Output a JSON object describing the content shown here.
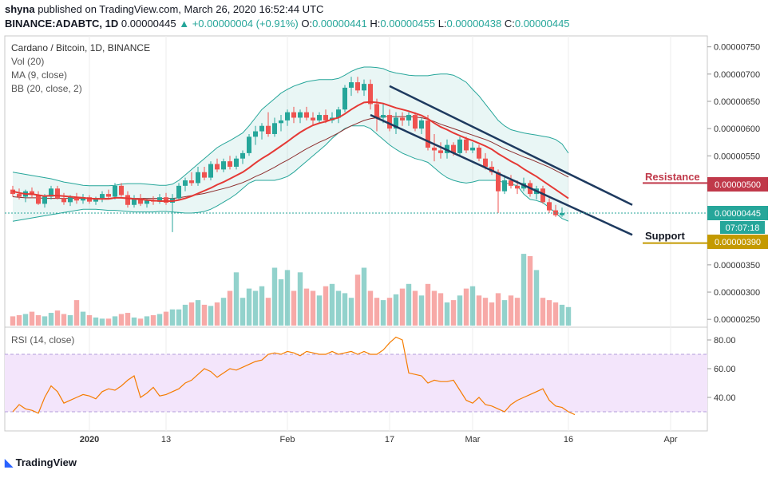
{
  "header": {
    "user": "shyna",
    "published_text": "published on TradingView.com, March 26, 2020 16:52:44 UTC",
    "symbol": "BINANCE:ADABTC, 1D",
    "last": "0.00000445",
    "change": "+0.00000004 (+0.91%)",
    "o_label": "O:",
    "o": "0.00000441",
    "h_label": "H:",
    "h": "0.00000455",
    "l_label": "L:",
    "l": "0.00000438",
    "c_label": "C:",
    "c": "0.00000445"
  },
  "legend": {
    "title": "Cardano / Bitcoin, 1D, BINANCE",
    "vol": "Vol (20)",
    "ma": "MA (9, close)",
    "bb": "BB (20, close, 2)",
    "rsi": "RSI (14, close)"
  },
  "annotations": {
    "resistance": "Resistance",
    "support": "Support",
    "resistance_price": "0.00000500",
    "support_price": "0.00000390",
    "last_price": "0.00000445",
    "countdown": "07:07:18"
  },
  "footer": {
    "brand": "TradingView"
  },
  "colors": {
    "up": "#26a69a",
    "down": "#ef5350",
    "ma": "#e53935",
    "bb_mid": "#8d2e2e",
    "bb_band": "#26a69a",
    "channel": "#1e3a5f",
    "rsi": "#f57c00",
    "resistance": "#c0394a",
    "support": "#c49a00"
  },
  "chart_data": {
    "type": "candlestick",
    "price_axis": {
      "ticks": [
        "0.00000750",
        "0.00000700",
        "0.00000650",
        "0.00000600",
        "0.00000550",
        "0.00000500",
        "0.00000445",
        "0.00000390",
        "0.00000350",
        "0.00000300",
        "0.00000250"
      ],
      "ylim": [
        2.5e-06,
        7.7e-06
      ]
    },
    "rsi_axis": {
      "ticks": [
        "80.00",
        "60.00",
        "40.00"
      ],
      "ylim": [
        17,
        87
      ],
      "upper": 70,
      "lower": 30
    },
    "x_ticks": [
      "2020",
      "13",
      "Feb",
      "17",
      "Mar",
      "16",
      "Apr"
    ],
    "x_tick_days": [
      0,
      12,
      31,
      47,
      60,
      75,
      91
    ],
    "first_day_offset": -12,
    "candles": [
      {
        "o": 4.88,
        "h": 4.95,
        "l": 4.75,
        "c": 4.8
      },
      {
        "o": 4.8,
        "h": 4.9,
        "l": 4.7,
        "c": 4.75
      },
      {
        "o": 4.75,
        "h": 4.88,
        "l": 4.65,
        "c": 4.85
      },
      {
        "o": 4.85,
        "h": 4.92,
        "l": 4.72,
        "c": 4.78
      },
      {
        "o": 4.78,
        "h": 4.85,
        "l": 4.6,
        "c": 4.62
      },
      {
        "o": 4.62,
        "h": 4.8,
        "l": 4.55,
        "c": 4.75
      },
      {
        "o": 4.75,
        "h": 4.95,
        "l": 4.7,
        "c": 4.9
      },
      {
        "o": 4.9,
        "h": 4.95,
        "l": 4.7,
        "c": 4.72
      },
      {
        "o": 4.72,
        "h": 4.82,
        "l": 4.6,
        "c": 4.65
      },
      {
        "o": 4.65,
        "h": 4.78,
        "l": 4.58,
        "c": 4.75
      },
      {
        "o": 4.75,
        "h": 4.82,
        "l": 4.62,
        "c": 4.68
      },
      {
        "o": 4.68,
        "h": 4.8,
        "l": 4.62,
        "c": 4.74
      },
      {
        "o": 4.74,
        "h": 4.78,
        "l": 4.62,
        "c": 4.66
      },
      {
        "o": 4.66,
        "h": 4.75,
        "l": 4.6,
        "c": 4.72
      },
      {
        "o": 4.72,
        "h": 4.85,
        "l": 4.65,
        "c": 4.8
      },
      {
        "o": 4.8,
        "h": 4.88,
        "l": 4.7,
        "c": 4.75
      },
      {
        "o": 4.75,
        "h": 5.0,
        "l": 4.7,
        "c": 4.95
      },
      {
        "o": 4.95,
        "h": 5.0,
        "l": 4.75,
        "c": 4.78
      },
      {
        "o": 4.78,
        "h": 4.85,
        "l": 4.55,
        "c": 4.6
      },
      {
        "o": 4.6,
        "h": 4.78,
        "l": 4.55,
        "c": 4.72
      },
      {
        "o": 4.72,
        "h": 4.8,
        "l": 4.58,
        "c": 4.62
      },
      {
        "o": 4.62,
        "h": 4.72,
        "l": 4.55,
        "c": 4.68
      },
      {
        "o": 4.68,
        "h": 4.76,
        "l": 4.6,
        "c": 4.66
      },
      {
        "o": 4.66,
        "h": 4.8,
        "l": 4.62,
        "c": 4.74
      },
      {
        "o": 4.74,
        "h": 4.82,
        "l": 4.6,
        "c": 4.64
      },
      {
        "o": 4.64,
        "h": 4.8,
        "l": 4.1,
        "c": 4.72
      },
      {
        "o": 4.72,
        "h": 5.0,
        "l": 4.68,
        "c": 4.95
      },
      {
        "o": 4.95,
        "h": 5.1,
        "l": 4.85,
        "c": 5.05
      },
      {
        "o": 5.05,
        "h": 5.2,
        "l": 4.95,
        "c": 5.0
      },
      {
        "o": 5.0,
        "h": 5.3,
        "l": 4.95,
        "c": 5.2
      },
      {
        "o": 5.2,
        "h": 5.3,
        "l": 5.05,
        "c": 5.1
      },
      {
        "o": 5.1,
        "h": 5.4,
        "l": 5.05,
        "c": 5.35
      },
      {
        "o": 5.35,
        "h": 5.45,
        "l": 5.2,
        "c": 5.25
      },
      {
        "o": 5.25,
        "h": 5.45,
        "l": 5.2,
        "c": 5.4
      },
      {
        "o": 5.4,
        "h": 5.5,
        "l": 5.25,
        "c": 5.3
      },
      {
        "o": 5.3,
        "h": 5.5,
        "l": 5.25,
        "c": 5.45
      },
      {
        "o": 5.45,
        "h": 5.6,
        "l": 5.35,
        "c": 5.55
      },
      {
        "o": 5.55,
        "h": 5.9,
        "l": 5.5,
        "c": 5.85
      },
      {
        "o": 5.85,
        "h": 6.05,
        "l": 5.7,
        "c": 5.95
      },
      {
        "o": 5.95,
        "h": 6.1,
        "l": 5.8,
        "c": 6.05
      },
      {
        "o": 6.05,
        "h": 6.3,
        "l": 5.85,
        "c": 5.9
      },
      {
        "o": 5.9,
        "h": 6.2,
        "l": 5.85,
        "c": 6.1
      },
      {
        "o": 6.1,
        "h": 6.25,
        "l": 5.95,
        "c": 6.15
      },
      {
        "o": 6.15,
        "h": 6.35,
        "l": 6.05,
        "c": 6.3
      },
      {
        "o": 6.3,
        "h": 6.4,
        "l": 6.1,
        "c": 6.2
      },
      {
        "o": 6.2,
        "h": 6.35,
        "l": 6.1,
        "c": 6.3
      },
      {
        "o": 6.3,
        "h": 6.4,
        "l": 6.15,
        "c": 6.2
      },
      {
        "o": 6.2,
        "h": 6.3,
        "l": 6.05,
        "c": 6.15
      },
      {
        "o": 6.15,
        "h": 6.3,
        "l": 6.1,
        "c": 6.25
      },
      {
        "o": 6.25,
        "h": 6.35,
        "l": 6.1,
        "c": 6.15
      },
      {
        "o": 6.15,
        "h": 6.3,
        "l": 6.1,
        "c": 6.2
      },
      {
        "o": 6.2,
        "h": 6.4,
        "l": 6.1,
        "c": 6.35
      },
      {
        "o": 6.35,
        "h": 6.8,
        "l": 6.3,
        "c": 6.75
      },
      {
        "o": 6.75,
        "h": 6.95,
        "l": 6.6,
        "c": 6.85
      },
      {
        "o": 6.85,
        "h": 6.95,
        "l": 6.65,
        "c": 6.7
      },
      {
        "o": 6.7,
        "h": 6.9,
        "l": 6.6,
        "c": 6.82
      },
      {
        "o": 6.82,
        "h": 6.9,
        "l": 6.35,
        "c": 6.45
      },
      {
        "o": 6.45,
        "h": 6.55,
        "l": 5.95,
        "c": 6.2
      },
      {
        "o": 6.2,
        "h": 6.45,
        "l": 6.1,
        "c": 6.25
      },
      {
        "o": 6.25,
        "h": 6.35,
        "l": 5.95,
        "c": 6.0
      },
      {
        "o": 6.0,
        "h": 6.3,
        "l": 5.9,
        "c": 6.2
      },
      {
        "o": 6.2,
        "h": 6.3,
        "l": 6.05,
        "c": 6.15
      },
      {
        "o": 6.15,
        "h": 6.3,
        "l": 6.05,
        "c": 6.25
      },
      {
        "o": 6.25,
        "h": 6.3,
        "l": 5.95,
        "c": 6.0
      },
      {
        "o": 6.0,
        "h": 6.2,
        "l": 5.9,
        "c": 6.15
      },
      {
        "o": 6.15,
        "h": 6.25,
        "l": 5.6,
        "c": 5.65
      },
      {
        "o": 5.65,
        "h": 5.9,
        "l": 5.4,
        "c": 5.6
      },
      {
        "o": 5.6,
        "h": 5.75,
        "l": 5.45,
        "c": 5.55
      },
      {
        "o": 5.55,
        "h": 5.8,
        "l": 5.45,
        "c": 5.7
      },
      {
        "o": 5.7,
        "h": 5.75,
        "l": 5.5,
        "c": 5.55
      },
      {
        "o": 5.55,
        "h": 5.85,
        "l": 5.5,
        "c": 5.8
      },
      {
        "o": 5.8,
        "h": 5.85,
        "l": 5.55,
        "c": 5.6
      },
      {
        "o": 5.6,
        "h": 5.75,
        "l": 5.55,
        "c": 5.65
      },
      {
        "o": 5.65,
        "h": 5.7,
        "l": 5.4,
        "c": 5.45
      },
      {
        "o": 5.45,
        "h": 5.55,
        "l": 5.25,
        "c": 5.3
      },
      {
        "o": 5.3,
        "h": 5.4,
        "l": 5.15,
        "c": 5.2
      },
      {
        "o": 5.2,
        "h": 5.25,
        "l": 4.45,
        "c": 4.85
      },
      {
        "o": 4.85,
        "h": 5.15,
        "l": 4.8,
        "c": 5.05
      },
      {
        "o": 5.05,
        "h": 5.15,
        "l": 4.9,
        "c": 4.95
      },
      {
        "o": 4.95,
        "h": 5.05,
        "l": 4.8,
        "c": 4.9
      },
      {
        "o": 4.9,
        "h": 5.1,
        "l": 4.85,
        "c": 5.0
      },
      {
        "o": 5.0,
        "h": 5.05,
        "l": 4.75,
        "c": 4.8
      },
      {
        "o": 4.8,
        "h": 4.95,
        "l": 4.7,
        "c": 4.9
      },
      {
        "o": 4.9,
        "h": 4.95,
        "l": 4.62,
        "c": 4.65
      },
      {
        "o": 4.65,
        "h": 4.72,
        "l": 4.45,
        "c": 4.5
      },
      {
        "o": 4.5,
        "h": 4.6,
        "l": 4.38,
        "c": 4.41
      },
      {
        "o": 4.41,
        "h": 4.55,
        "l": 4.38,
        "c": 4.45
      }
    ],
    "ma": [
      4.85,
      4.82,
      4.8,
      4.8,
      4.78,
      4.76,
      4.77,
      4.77,
      4.76,
      4.75,
      4.74,
      4.73,
      4.72,
      4.71,
      4.71,
      4.71,
      4.73,
      4.73,
      4.72,
      4.71,
      4.7,
      4.69,
      4.68,
      4.67,
      4.67,
      4.67,
      4.69,
      4.72,
      4.76,
      4.81,
      4.86,
      4.91,
      4.97,
      5.02,
      5.08,
      5.14,
      5.2,
      5.28,
      5.37,
      5.45,
      5.52,
      5.6,
      5.68,
      5.76,
      5.85,
      5.93,
      6.0,
      6.06,
      6.1,
      6.13,
      6.17,
      6.2,
      6.27,
      6.35,
      6.42,
      6.48,
      6.49,
      6.48,
      6.46,
      6.42,
      6.38,
      6.35,
      6.32,
      6.28,
      6.24,
      6.18,
      6.1,
      6.03,
      5.98,
      5.92,
      5.87,
      5.82,
      5.78,
      5.73,
      5.68,
      5.62,
      5.54,
      5.47,
      5.4,
      5.34,
      5.26,
      5.19,
      5.12,
      5.04,
      4.96,
      4.88,
      4.8,
      4.72
    ],
    "bb_mid": [
      4.75,
      4.74,
      4.73,
      4.73,
      4.73,
      4.72,
      4.72,
      4.72,
      4.72,
      4.72,
      4.72,
      4.72,
      4.72,
      4.72,
      4.72,
      4.72,
      4.73,
      4.73,
      4.73,
      4.72,
      4.72,
      4.72,
      4.72,
      4.72,
      4.72,
      4.72,
      4.73,
      4.75,
      4.77,
      4.79,
      4.81,
      4.84,
      4.87,
      4.9,
      4.93,
      4.97,
      5.01,
      5.06,
      5.12,
      5.17,
      5.23,
      5.29,
      5.36,
      5.42,
      5.49,
      5.56,
      5.63,
      5.69,
      5.75,
      5.8,
      5.86,
      5.92,
      5.99,
      6.05,
      6.1,
      6.15,
      6.18,
      6.2,
      6.22,
      6.22,
      6.22,
      6.22,
      6.22,
      6.21,
      6.2,
      6.17,
      6.13,
      6.08,
      6.04,
      6.0,
      5.96,
      5.92,
      5.88,
      5.84,
      5.8,
      5.75,
      5.69,
      5.63,
      5.58,
      5.53,
      5.48,
      5.44,
      5.39,
      5.34,
      5.29,
      5.23,
      5.17,
      5.11
    ],
    "bb_upper": [
      5.2,
      5.18,
      5.16,
      5.14,
      5.12,
      5.1,
      5.08,
      5.05,
      5.02,
      5.0,
      4.98,
      4.96,
      4.95,
      4.95,
      4.95,
      4.95,
      4.96,
      4.98,
      4.99,
      4.99,
      4.99,
      4.98,
      4.97,
      4.96,
      4.96,
      4.98,
      5.05,
      5.15,
      5.25,
      5.35,
      5.45,
      5.55,
      5.65,
      5.72,
      5.78,
      5.85,
      5.92,
      6.05,
      6.2,
      6.35,
      6.45,
      6.55,
      6.65,
      6.72,
      6.78,
      6.82,
      6.86,
      6.88,
      6.9,
      6.9,
      6.9,
      6.92,
      6.98,
      7.05,
      7.1,
      7.13,
      7.13,
      7.12,
      7.1,
      7.05,
      7.02,
      7.0,
      6.98,
      6.97,
      6.97,
      6.97,
      6.99,
      7.0,
      7.0,
      6.98,
      6.92,
      6.85,
      6.72,
      6.6,
      6.45,
      6.3,
      6.15,
      6.05,
      5.98,
      5.95,
      5.92,
      5.9,
      5.88,
      5.86,
      5.84,
      5.8,
      5.72,
      5.55
    ],
    "bb_lower": [
      4.3,
      4.32,
      4.34,
      4.36,
      4.38,
      4.4,
      4.42,
      4.44,
      4.46,
      4.48,
      4.5,
      4.52,
      4.52,
      4.52,
      4.51,
      4.5,
      4.5,
      4.49,
      4.48,
      4.47,
      4.47,
      4.47,
      4.47,
      4.48,
      4.48,
      4.47,
      4.46,
      4.45,
      4.45,
      4.46,
      4.48,
      4.52,
      4.58,
      4.65,
      4.72,
      4.8,
      4.9,
      5.0,
      5.05,
      5.05,
      5.05,
      5.05,
      5.08,
      5.12,
      5.2,
      5.3,
      5.4,
      5.5,
      5.6,
      5.7,
      5.82,
      5.92,
      6.0,
      6.05,
      6.05,
      6.05,
      6.0,
      5.9,
      5.8,
      5.7,
      5.62,
      5.55,
      5.5,
      5.45,
      5.42,
      5.38,
      5.28,
      5.18,
      5.1,
      5.05,
      5.02,
      5.0,
      5.02,
      5.05,
      5.05,
      5.05,
      5.05,
      5.0,
      4.98,
      4.95,
      4.8,
      4.7,
      4.68,
      4.64,
      4.55,
      4.45,
      4.35,
      4.3
    ],
    "volumes": [
      0.08,
      0.09,
      0.1,
      0.12,
      0.09,
      0.08,
      0.11,
      0.13,
      0.1,
      0.09,
      0.22,
      0.12,
      0.09,
      0.07,
      0.06,
      0.06,
      0.08,
      0.1,
      0.11,
      0.07,
      0.06,
      0.08,
      0.09,
      0.1,
      0.12,
      0.14,
      0.14,
      0.18,
      0.2,
      0.22,
      0.18,
      0.17,
      0.2,
      0.24,
      0.3,
      0.46,
      0.24,
      0.32,
      0.3,
      0.34,
      0.24,
      0.5,
      0.4,
      0.48,
      0.3,
      0.46,
      0.32,
      0.3,
      0.26,
      0.34,
      0.36,
      0.3,
      0.28,
      0.24,
      0.44,
      0.5,
      0.3,
      0.24,
      0.22,
      0.24,
      0.27,
      0.32,
      0.36,
      0.3,
      0.26,
      0.36,
      0.3,
      0.28,
      0.2,
      0.22,
      0.26,
      0.32,
      0.34,
      0.26,
      0.24,
      0.2,
      0.28,
      0.22,
      0.26,
      0.24,
      0.62,
      0.6,
      0.48,
      0.24,
      0.22,
      0.2,
      0.18,
      0.16
    ],
    "rsi": [
      30,
      35,
      32,
      31,
      29,
      40,
      48,
      44,
      36,
      38,
      40,
      42,
      41,
      39,
      44,
      46,
      45,
      48,
      52,
      55,
      40,
      43,
      47,
      41,
      42,
      44,
      46,
      50,
      52,
      56,
      60,
      58,
      54,
      57,
      60,
      59,
      61,
      63,
      65,
      66,
      70,
      71,
      70,
      72,
      71,
      69,
      72,
      71,
      70,
      70,
      72,
      70,
      71,
      72,
      70,
      72,
      70,
      70,
      73,
      78,
      82,
      80,
      57,
      56,
      55,
      50,
      52,
      51,
      51,
      52,
      45,
      38,
      36,
      40,
      35,
      34,
      32,
      30,
      35,
      38,
      40,
      42,
      44,
      46,
      38,
      34,
      33,
      30,
      28
    ],
    "rsi_days": [
      -12,
      -11,
      -10,
      -9,
      -8,
      -7,
      -6,
      -5,
      -4,
      -3,
      -2,
      -1,
      0,
      1,
      2,
      3,
      4,
      5,
      6,
      7,
      8,
      9,
      10,
      11,
      12,
      13,
      14,
      15,
      16,
      17,
      18,
      19,
      20,
      21,
      22,
      23,
      24,
      25,
      26,
      27,
      28,
      29,
      30,
      31,
      32,
      33,
      34,
      35,
      36,
      37,
      38,
      39,
      40,
      41,
      42,
      43,
      44,
      45,
      46,
      47,
      48,
      49,
      50,
      51,
      52,
      53,
      54,
      55,
      56,
      57,
      58,
      59,
      60,
      61,
      62,
      63,
      64,
      65,
      66,
      67,
      68,
      69,
      70,
      71,
      72,
      73,
      74,
      75,
      76
    ],
    "resistance_price": 5.0,
    "support_price": 3.9,
    "last_price": 4.45,
    "channel_upper": [
      [
        47,
        6.78
      ],
      [
        85,
        4.6
      ]
    ],
    "channel_lower": [
      [
        44,
        6.25
      ],
      [
        85,
        4.05
      ]
    ]
  }
}
